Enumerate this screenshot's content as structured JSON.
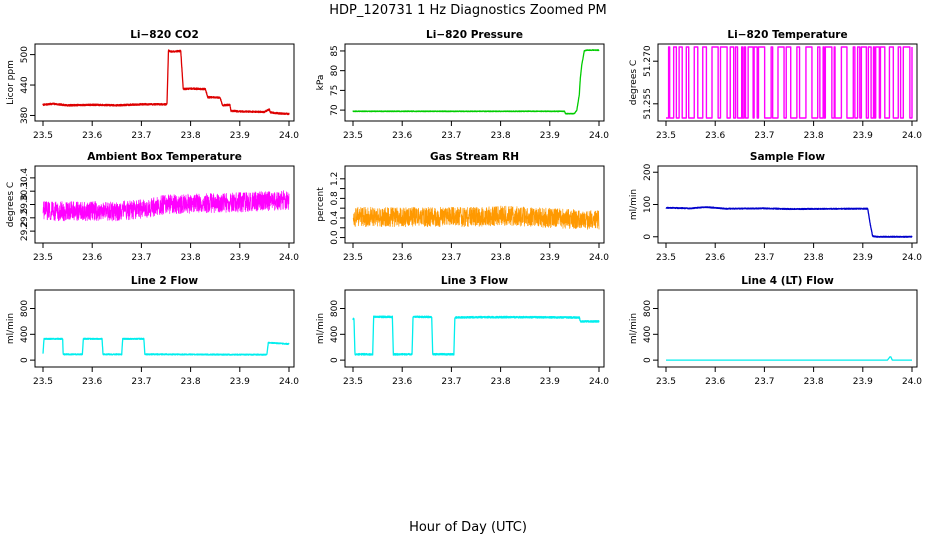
{
  "figure": {
    "title": "HDP_120731  1 Hz Diagnostics Zoomed PM",
    "xlabel": "Hour of Day (UTC)"
  },
  "chart_data": [
    {
      "type": "line",
      "title": "Li−820 CO2",
      "ylabel": "Licor ppm",
      "color": "#dd0000",
      "xlim": [
        23.5,
        24.0
      ],
      "xticks": [
        "23.5",
        "23.6",
        "23.7",
        "23.8",
        "23.9",
        "24.0"
      ],
      "ylim": [
        375,
        515
      ],
      "yticks": [
        380,
        440,
        500
      ],
      "yticklabels": [
        "380",
        "440",
        "500"
      ],
      "noise": 1.5,
      "x": [
        23.5,
        23.52,
        23.55,
        23.6,
        23.65,
        23.7,
        23.752,
        23.755,
        23.76,
        23.78,
        23.785,
        23.8,
        23.83,
        23.835,
        23.86,
        23.865,
        23.88,
        23.882,
        23.9,
        23.95,
        23.96,
        23.962,
        23.98,
        24.0
      ],
      "y": [
        401,
        403,
        400,
        401,
        400,
        402,
        402,
        508,
        506,
        507,
        432,
        433,
        432,
        416,
        415,
        400,
        401,
        389,
        388,
        387,
        392,
        386,
        384,
        383
      ]
    },
    {
      "type": "line",
      "title": "Li−820 Pressure",
      "ylabel": "kPa",
      "color": "#00cc00",
      "xlim": [
        23.5,
        24.0
      ],
      "xticks": [
        "23.5",
        "23.6",
        "23.7",
        "23.8",
        "23.9",
        "24.0"
      ],
      "ylim": [
        68,
        86
      ],
      "yticks": [
        70,
        75,
        80,
        85
      ],
      "yticklabels": [
        "70",
        "75",
        "80",
        "85"
      ],
      "noise": 0.08,
      "x": [
        23.5,
        23.7,
        23.9,
        23.93,
        23.932,
        23.95,
        23.955,
        23.96,
        23.962,
        23.965,
        23.968,
        23.97,
        23.975,
        24.0
      ],
      "y": [
        69.7,
        69.7,
        69.7,
        69.7,
        69.1,
        69.1,
        70.0,
        74.0,
        78.0,
        81.5,
        83.5,
        85.0,
        85.2,
        85.2
      ]
    },
    {
      "type": "line",
      "title": "Li−820 Temperature",
      "ylabel": "degrees C",
      "color": "#ff00ff",
      "xlim": [
        23.5,
        24.0
      ],
      "xticks": [
        "23.5",
        "23.6",
        "23.7",
        "23.8",
        "23.9",
        "24.0"
      ],
      "ylim": [
        51.25,
        51.275
      ],
      "yticks": [
        51.255,
        51.27
      ],
      "yticklabels": [
        "51.255",
        "51.270"
      ],
      "levels": [
        51.25,
        51.275
      ],
      "x": [
        23.5,
        24.0
      ]
    },
    {
      "type": "line",
      "title": "Ambient Box Temperature",
      "ylabel": "degrees C",
      "color": "#ff00ff",
      "xlim": [
        23.5,
        24.0
      ],
      "xticks": [
        "23.5",
        "23.6",
        "23.7",
        "23.8",
        "23.9",
        "24.0"
      ],
      "ylim": [
        29.0,
        30.6
      ],
      "yticks": [
        29.2,
        29.5,
        29.8,
        30.1,
        30.4
      ],
      "yticklabels": [
        "29.2",
        "29.5",
        "29.8",
        "30.1",
        "30.4"
      ],
      "noise": 0.22,
      "x": [
        23.5,
        23.65,
        23.7,
        23.75,
        23.9,
        24.0
      ],
      "y": [
        29.65,
        29.65,
        29.7,
        29.8,
        29.85,
        29.9
      ]
    },
    {
      "type": "line",
      "title": "Gas Stream RH",
      "ylabel": "percent",
      "color": "#ff9900",
      "xlim": [
        23.5,
        24.0
      ],
      "xticks": [
        "23.5",
        "23.6",
        "23.7",
        "23.8",
        "23.9",
        "24.0"
      ],
      "ylim": [
        -0.05,
        1.4
      ],
      "yticks": [
        0.0,
        0.3,
        0.6,
        0.9,
        1.2
      ],
      "yticklabels": [
        "0.0",
        "0.4",
        "0.8",
        "1.2"
      ],
      "ytickvalues": [
        0.0,
        0.4,
        0.8,
        1.2
      ],
      "noise": 0.2,
      "x": [
        23.5,
        23.75,
        23.8,
        23.9,
        24.0
      ],
      "y": [
        0.42,
        0.42,
        0.45,
        0.4,
        0.35
      ]
    },
    {
      "type": "line",
      "title": "Sample Flow",
      "ylabel": "ml/min",
      "color": "#0000cc",
      "xlim": [
        23.5,
        24.0
      ],
      "xticks": [
        "23.5",
        "23.6",
        "23.7",
        "23.8",
        "23.9",
        "24.0"
      ],
      "ylim": [
        -10,
        210
      ],
      "yticks": [
        0,
        100,
        200
      ],
      "yticklabels": [
        "0",
        "100",
        "200"
      ],
      "noise": 1.5,
      "x": [
        23.5,
        23.55,
        23.58,
        23.6,
        23.62,
        23.7,
        23.75,
        23.9,
        23.91,
        23.915,
        23.92,
        23.93,
        24.0
      ],
      "y": [
        90,
        88,
        92,
        90,
        87,
        88,
        86,
        87,
        87,
        40,
        2,
        0,
        0
      ]
    },
    {
      "type": "line",
      "title": "Line 2 Flow",
      "ylabel": "ml/min",
      "color": "#00eeee",
      "xlim": [
        23.5,
        24.0
      ],
      "xticks": [
        "23.5",
        "23.6",
        "23.7",
        "23.8",
        "23.9",
        "24.0"
      ],
      "ylim": [
        -60,
        1040
      ],
      "yticks": [
        0,
        400,
        800
      ],
      "yticklabels": [
        "0",
        "400",
        "800"
      ],
      "noise": 8,
      "x": [
        23.5,
        23.502,
        23.54,
        23.541,
        23.58,
        23.582,
        23.62,
        23.622,
        23.66,
        23.662,
        23.705,
        23.707,
        23.75,
        23.9,
        23.955,
        23.958,
        24.0
      ],
      "y": [
        100,
        330,
        330,
        90,
        90,
        330,
        330,
        90,
        90,
        330,
        330,
        90,
        90,
        85,
        85,
        270,
        250
      ]
    },
    {
      "type": "line",
      "title": "Line 3 Flow",
      "ylabel": "ml/min",
      "color": "#00eeee",
      "xlim": [
        23.5,
        24.0
      ],
      "xticks": [
        "23.5",
        "23.6",
        "23.7",
        "23.8",
        "23.9",
        "24.0"
      ],
      "ylim": [
        -60,
        1040
      ],
      "yticks": [
        0,
        400,
        800
      ],
      "yticklabels": [
        "0",
        "400",
        "800"
      ],
      "noise": 12,
      "x": [
        23.5,
        23.502,
        23.504,
        23.54,
        23.542,
        23.58,
        23.582,
        23.62,
        23.622,
        23.66,
        23.662,
        23.705,
        23.707,
        23.75,
        23.85,
        23.96,
        23.962,
        24.0
      ],
      "y": [
        640,
        640,
        90,
        90,
        670,
        670,
        90,
        90,
        670,
        670,
        90,
        90,
        660,
        665,
        665,
        660,
        600,
        600
      ]
    },
    {
      "type": "line",
      "title": "Line 4 (LT) Flow",
      "ylabel": "ml/min",
      "color": "#00eeee",
      "xlim": [
        23.5,
        24.0
      ],
      "xticks": [
        "23.5",
        "23.6",
        "23.7",
        "23.8",
        "23.9",
        "24.0"
      ],
      "ylim": [
        -60,
        1040
      ],
      "yticks": [
        0,
        400,
        800
      ],
      "yticklabels": [
        "0",
        "400",
        "800"
      ],
      "noise": 0,
      "x": [
        23.5,
        23.95,
        23.955,
        23.957,
        23.96,
        24.0
      ],
      "y": [
        0,
        0,
        50,
        50,
        0,
        0
      ]
    }
  ]
}
